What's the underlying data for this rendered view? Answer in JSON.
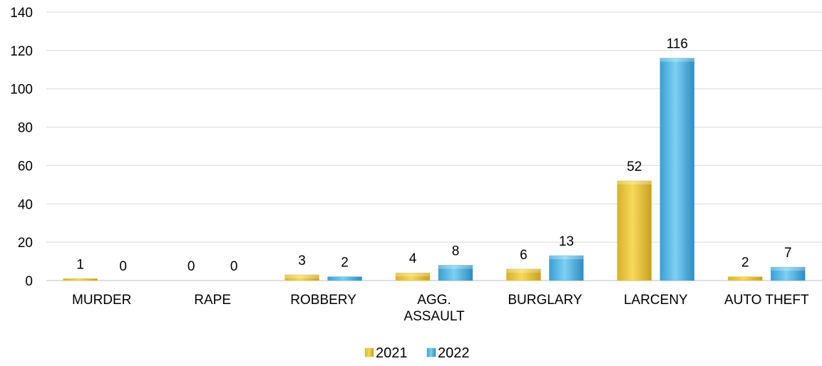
{
  "chart_data": {
    "type": "bar",
    "categories": [
      "MURDER",
      "RAPE",
      "ROBBERY",
      "AGG. ASSAULT",
      "BURGLARY",
      "LARCENY",
      "AUTO THEFT"
    ],
    "category_lines": [
      [
        "MURDER"
      ],
      [
        "RAPE"
      ],
      [
        "ROBBERY"
      ],
      [
        "AGG.",
        "ASSAULT"
      ],
      [
        "BURGLARY"
      ],
      [
        "LARCENY"
      ],
      [
        "AUTO THEFT"
      ]
    ],
    "series": [
      {
        "name": "2021",
        "values": [
          1,
          0,
          3,
          4,
          6,
          52,
          2
        ],
        "color": "#E8C43A"
      },
      {
        "name": "2022",
        "values": [
          0,
          0,
          2,
          8,
          13,
          116,
          7
        ],
        "color": "#4FB3E3"
      }
    ],
    "ylim": [
      0,
      140
    ],
    "yticks": [
      0,
      20,
      40,
      60,
      80,
      100,
      120,
      140
    ],
    "grid": true,
    "legend_position": "bottom",
    "title": "",
    "xlabel": "",
    "ylabel": ""
  }
}
